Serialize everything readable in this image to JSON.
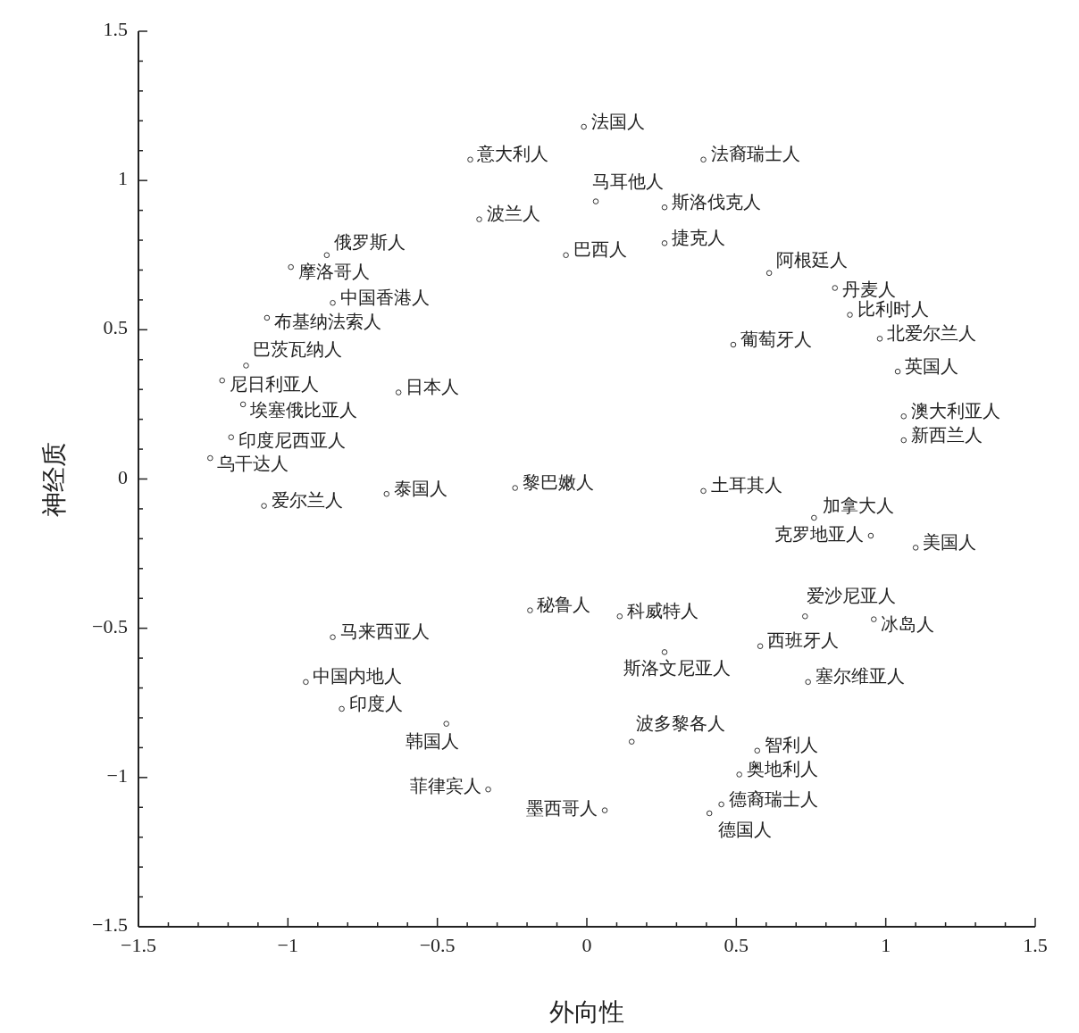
{
  "chart_data": {
    "type": "scatter",
    "xlabel": "外向性",
    "ylabel": "神经质",
    "marker": "circle",
    "grid": false,
    "xlim": [
      -1.5,
      1.5
    ],
    "ylim": [
      -1.5,
      1.5
    ],
    "xticks": [
      {
        "value": -1.5,
        "label": "−1.5"
      },
      {
        "value": -1.4,
        "label": null
      },
      {
        "value": -1.3,
        "label": null
      },
      {
        "value": -1.2,
        "label": null
      },
      {
        "value": -1.1,
        "label": null
      },
      {
        "value": -1,
        "label": "−1"
      },
      {
        "value": -0.9,
        "label": null
      },
      {
        "value": -0.8,
        "label": null
      },
      {
        "value": -0.7,
        "label": null
      },
      {
        "value": -0.6,
        "label": null
      },
      {
        "value": -0.5,
        "label": "−0.5"
      },
      {
        "value": -0.4,
        "label": null
      },
      {
        "value": -0.3,
        "label": null
      },
      {
        "value": -0.2,
        "label": null
      },
      {
        "value": -0.1,
        "label": null
      },
      {
        "value": 0,
        "label": "0"
      },
      {
        "value": 0.1,
        "label": null
      },
      {
        "value": 0.2,
        "label": null
      },
      {
        "value": 0.3,
        "label": null
      },
      {
        "value": 0.4,
        "label": null
      },
      {
        "value": 0.5,
        "label": "0.5"
      },
      {
        "value": 0.6,
        "label": null
      },
      {
        "value": 0.7,
        "label": null
      },
      {
        "value": 0.8,
        "label": null
      },
      {
        "value": 0.9,
        "label": null
      },
      {
        "value": 1,
        "label": "1"
      },
      {
        "value": 1.1,
        "label": null
      },
      {
        "value": 1.2,
        "label": null
      },
      {
        "value": 1.3,
        "label": null
      },
      {
        "value": 1.4,
        "label": null
      },
      {
        "value": 1.5,
        "label": "1.5"
      }
    ],
    "yticks": [
      {
        "value": -1.5,
        "label": "−1.5"
      },
      {
        "value": -1.4,
        "label": null
      },
      {
        "value": -1.3,
        "label": null
      },
      {
        "value": -1.2,
        "label": null
      },
      {
        "value": -1.1,
        "label": null
      },
      {
        "value": -1,
        "label": "−1"
      },
      {
        "value": -0.9,
        "label": null
      },
      {
        "value": -0.8,
        "label": null
      },
      {
        "value": -0.7,
        "label": null
      },
      {
        "value": -0.6,
        "label": null
      },
      {
        "value": -0.5,
        "label": "−0.5"
      },
      {
        "value": -0.4,
        "label": null
      },
      {
        "value": -0.3,
        "label": null
      },
      {
        "value": -0.2,
        "label": null
      },
      {
        "value": -0.1,
        "label": null
      },
      {
        "value": 0,
        "label": "0"
      },
      {
        "value": 0.1,
        "label": null
      },
      {
        "value": 0.2,
        "label": null
      },
      {
        "value": 0.3,
        "label": null
      },
      {
        "value": 0.4,
        "label": null
      },
      {
        "value": 0.5,
        "label": "0.5"
      },
      {
        "value": 0.6,
        "label": null
      },
      {
        "value": 0.7,
        "label": null
      },
      {
        "value": 0.8,
        "label": null
      },
      {
        "value": 0.9,
        "label": null
      },
      {
        "value": 1,
        "label": "1"
      },
      {
        "value": 1.1,
        "label": null
      },
      {
        "value": 1.2,
        "label": null
      },
      {
        "value": 1.3,
        "label": null
      },
      {
        "value": 1.4,
        "label": null
      },
      {
        "value": 1.5,
        "label": "1.5"
      }
    ],
    "series": [
      {
        "color": "#333333",
        "x": [
          -0.01,
          -0.39,
          0.39,
          0.03,
          0.26,
          -0.36,
          0.26,
          -0.07,
          -0.87,
          -0.99,
          0.61,
          0.83,
          -0.85,
          0.88,
          -1.07,
          0.98,
          0.49,
          -1.14,
          1.04,
          -1.22,
          -0.63,
          -1.15,
          1.06,
          -1.19,
          1.06,
          -1.26,
          -0.24,
          0.39,
          -0.67,
          -1.08,
          0.76,
          0.95,
          1.1,
          -0.19,
          0.73,
          0.11,
          0.96,
          -0.85,
          0.58,
          0.26,
          -0.94,
          0.74,
          -0.82,
          -0.47,
          0.57,
          0.15,
          0.51,
          -0.33,
          0.45,
          0.06,
          0.41
        ],
        "values": [
          1.18,
          1.07,
          1.07,
          0.93,
          0.91,
          0.87,
          0.79,
          0.75,
          0.75,
          0.71,
          0.69,
          0.64,
          0.59,
          0.55,
          0.54,
          0.47,
          0.45,
          0.38,
          0.36,
          0.33,
          0.29,
          0.25,
          0.21,
          0.14,
          0.13,
          0.07,
          -0.03,
          -0.04,
          -0.05,
          -0.09,
          -0.13,
          -0.19,
          -0.23,
          -0.44,
          -0.46,
          -0.46,
          -0.47,
          -0.53,
          -0.56,
          -0.58,
          -0.68,
          -0.68,
          -0.77,
          -0.82,
          -0.91,
          -0.88,
          -0.99,
          -1.04,
          -1.09,
          -1.11,
          -1.12
        ],
        "value_labels": [
          "法国人",
          "意大利人",
          "法裔瑞士人",
          "马耳他人",
          "斯洛伐克人",
          "波兰人",
          "捷克人",
          "巴西人",
          "俄罗斯人",
          "摩洛哥人",
          "阿根廷人",
          "丹麦人",
          "中国香港人",
          "比利时人",
          "布基纳法索人",
          "北爱尔兰人",
          "葡萄牙人",
          "巴茨瓦纳人",
          "英国人",
          "尼日利亚人",
          "日本人",
          "埃塞俄比亚人",
          "澳大利亚人",
          "印度尼西亚人",
          "新西兰人",
          "乌干达人",
          "黎巴嫩人",
          "土耳其人",
          "泰国人",
          "爱尔兰人",
          "加拿大人",
          "克罗地亚人",
          "美国人",
          "秘鲁人",
          "爱沙尼亚人",
          "科威特人",
          "冰岛人",
          "马来西亚人",
          "西班牙人",
          "斯洛文尼亚人",
          "中国内地人",
          "塞尔维亚人",
          "印度人",
          "韩国人",
          "智利人",
          "波多黎各人",
          "奥地利人",
          "菲律宾人",
          "德裔瑞士人",
          "墨西哥人",
          "德国人"
        ]
      }
    ]
  }
}
